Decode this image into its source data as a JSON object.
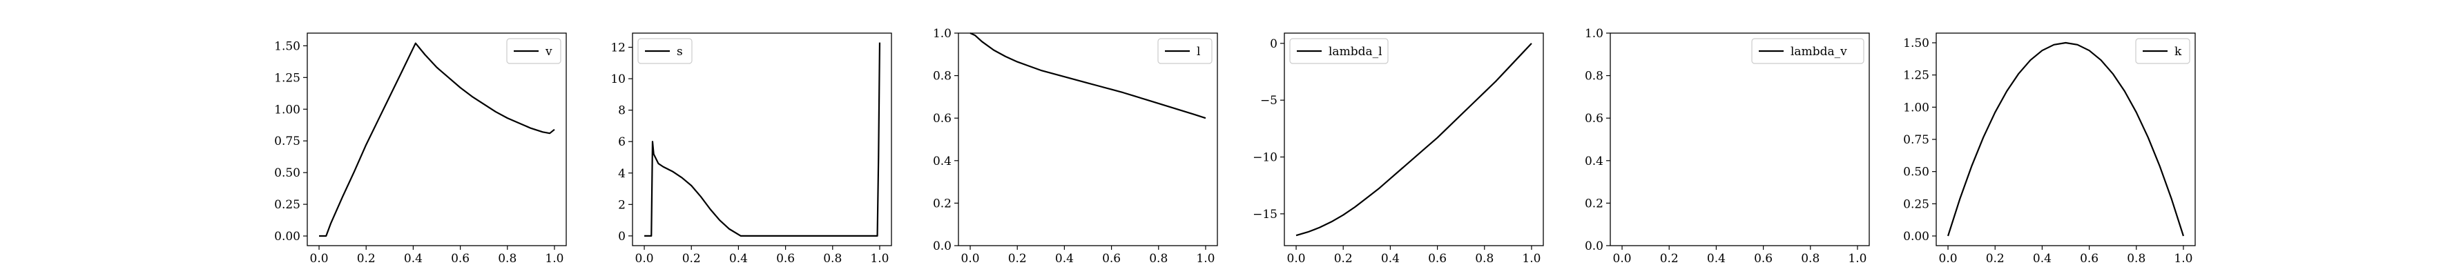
{
  "chart_data": [
    {
      "type": "line",
      "legend": {
        "label": "v",
        "position": "upper-right"
      },
      "xlim": [
        -0.05,
        1.05
      ],
      "ylim": [
        -0.076,
        1.6
      ],
      "xticks": [
        0.0,
        0.2,
        0.4,
        0.6,
        0.8,
        1.0
      ],
      "xtick_labels": [
        "0.0",
        "0.2",
        "0.4",
        "0.6",
        "0.8",
        "1.0"
      ],
      "yticks": [
        0.0,
        0.25,
        0.5,
        0.75,
        1.0,
        1.25,
        1.5
      ],
      "ytick_labels": [
        "0.00",
        "0.25",
        "0.50",
        "0.75",
        "1.00",
        "1.25",
        "1.50"
      ],
      "x": [
        0.0,
        0.03,
        0.05,
        0.1,
        0.15,
        0.2,
        0.25,
        0.3,
        0.35,
        0.41,
        0.45,
        0.5,
        0.55,
        0.6,
        0.65,
        0.7,
        0.75,
        0.8,
        0.85,
        0.9,
        0.95,
        0.98,
        1.0
      ],
      "y": [
        0.0,
        0.0,
        0.1,
        0.31,
        0.51,
        0.72,
        0.91,
        1.1,
        1.29,
        1.52,
        1.43,
        1.33,
        1.25,
        1.17,
        1.1,
        1.04,
        0.98,
        0.93,
        0.89,
        0.85,
        0.82,
        0.81,
        0.84
      ]
    },
    {
      "type": "line",
      "legend": {
        "label": "s",
        "position": "upper-left"
      },
      "xlim": [
        -0.05,
        1.05
      ],
      "ylim": [
        -0.62,
        12.9
      ],
      "xticks": [
        0.0,
        0.2,
        0.4,
        0.6,
        0.8,
        1.0
      ],
      "xtick_labels": [
        "0.0",
        "0.2",
        "0.4",
        "0.6",
        "0.8",
        "1.0"
      ],
      "yticks": [
        0,
        2,
        4,
        6,
        8,
        10,
        12
      ],
      "ytick_labels": [
        "0",
        "2",
        "4",
        "6",
        "8",
        "10",
        "12"
      ],
      "x": [
        0.0,
        0.03,
        0.035,
        0.04,
        0.06,
        0.08,
        0.12,
        0.16,
        0.2,
        0.24,
        0.28,
        0.32,
        0.36,
        0.41,
        0.5,
        0.6,
        0.7,
        0.8,
        0.9,
        0.99,
        0.995,
        1.0
      ],
      "y": [
        0.0,
        0.0,
        6.0,
        5.2,
        4.6,
        4.4,
        4.1,
        3.7,
        3.2,
        2.5,
        1.7,
        1.0,
        0.45,
        0.0,
        0.0,
        0.0,
        0.0,
        0.0,
        0.0,
        0.0,
        5.0,
        12.3
      ]
    },
    {
      "type": "line",
      "legend": {
        "label": "l",
        "position": "upper-right"
      },
      "xlim": [
        -0.05,
        1.05
      ],
      "ylim": [
        0.0,
        1.0
      ],
      "xticks": [
        0.0,
        0.2,
        0.4,
        0.6,
        0.8,
        1.0
      ],
      "xtick_labels": [
        "0.0",
        "0.2",
        "0.4",
        "0.6",
        "0.8",
        "1.0"
      ],
      "yticks": [
        0.0,
        0.2,
        0.4,
        0.6,
        0.8,
        1.0
      ],
      "ytick_labels": [
        "0.0",
        "0.2",
        "0.4",
        "0.6",
        "0.8",
        "1.0"
      ],
      "x": [
        0.0,
        0.02,
        0.05,
        0.1,
        0.15,
        0.2,
        0.25,
        0.3,
        0.35,
        0.4,
        0.45,
        0.5,
        0.55,
        0.6,
        0.65,
        0.7,
        0.75,
        0.8,
        0.85,
        0.9,
        0.95,
        1.0
      ],
      "y": [
        1.0,
        0.99,
        0.96,
        0.92,
        0.89,
        0.865,
        0.845,
        0.825,
        0.81,
        0.795,
        0.78,
        0.765,
        0.75,
        0.735,
        0.72,
        0.703,
        0.686,
        0.669,
        0.652,
        0.635,
        0.618,
        0.6
      ]
    },
    {
      "type": "line",
      "legend": {
        "label": "lambda_l",
        "position": "upper-left"
      },
      "xlim": [
        -0.05,
        1.05
      ],
      "ylim": [
        -17.8,
        0.9
      ],
      "xticks": [
        0.0,
        0.2,
        0.4,
        0.6,
        0.8,
        1.0
      ],
      "xtick_labels": [
        "0.0",
        "0.2",
        "0.4",
        "0.6",
        "0.8",
        "1.0"
      ],
      "yticks": [
        -15,
        -10,
        -5,
        0
      ],
      "ytick_labels": [
        "−15",
        "−10",
        "−5",
        "0"
      ],
      "x": [
        0.0,
        0.05,
        0.1,
        0.15,
        0.2,
        0.25,
        0.3,
        0.35,
        0.4,
        0.45,
        0.5,
        0.55,
        0.6,
        0.65,
        0.7,
        0.75,
        0.8,
        0.85,
        0.9,
        0.95,
        1.0
      ],
      "y": [
        -16.9,
        -16.6,
        -16.2,
        -15.7,
        -15.1,
        -14.4,
        -13.6,
        -12.8,
        -11.9,
        -11.0,
        -10.1,
        -9.2,
        -8.3,
        -7.3,
        -6.3,
        -5.3,
        -4.3,
        -3.3,
        -2.2,
        -1.1,
        0.0
      ]
    },
    {
      "type": "line",
      "legend": {
        "label": "lambda_v",
        "position": "upper-right"
      },
      "xlim": [
        -0.05,
        1.05
      ],
      "ylim": [
        0.0,
        1.0
      ],
      "xticks": [
        0.0,
        0.2,
        0.4,
        0.6,
        0.8,
        1.0
      ],
      "xtick_labels": [
        "0.0",
        "0.2",
        "0.4",
        "0.6",
        "0.8",
        "1.0"
      ],
      "yticks": [
        0.0,
        0.2,
        0.4,
        0.6,
        0.8,
        1.0
      ],
      "ytick_labels": [
        "0.0",
        "0.2",
        "0.4",
        "0.6",
        "0.8",
        "1.0"
      ],
      "x": [],
      "y": []
    },
    {
      "type": "line",
      "legend": {
        "label": "k",
        "position": "upper-right"
      },
      "xlim": [
        -0.05,
        1.05
      ],
      "ylim": [
        -0.075,
        1.575
      ],
      "xticks": [
        0.0,
        0.2,
        0.4,
        0.6,
        0.8,
        1.0
      ],
      "xtick_labels": [
        "0.0",
        "0.2",
        "0.4",
        "0.6",
        "0.8",
        "1.0"
      ],
      "yticks": [
        0.0,
        0.25,
        0.5,
        0.75,
        1.0,
        1.25,
        1.5
      ],
      "ytick_labels": [
        "0.00",
        "0.25",
        "0.50",
        "0.75",
        "1.00",
        "1.25",
        "1.50"
      ],
      "x": [
        0.0,
        0.05,
        0.1,
        0.15,
        0.2,
        0.25,
        0.3,
        0.35,
        0.4,
        0.45,
        0.5,
        0.55,
        0.6,
        0.65,
        0.7,
        0.75,
        0.8,
        0.85,
        0.9,
        0.95,
        1.0
      ],
      "y": [
        0.0,
        0.285,
        0.54,
        0.765,
        0.96,
        1.125,
        1.26,
        1.365,
        1.44,
        1.485,
        1.5,
        1.485,
        1.44,
        1.365,
        1.26,
        1.125,
        0.96,
        0.765,
        0.54,
        0.285,
        0.0
      ]
    }
  ]
}
